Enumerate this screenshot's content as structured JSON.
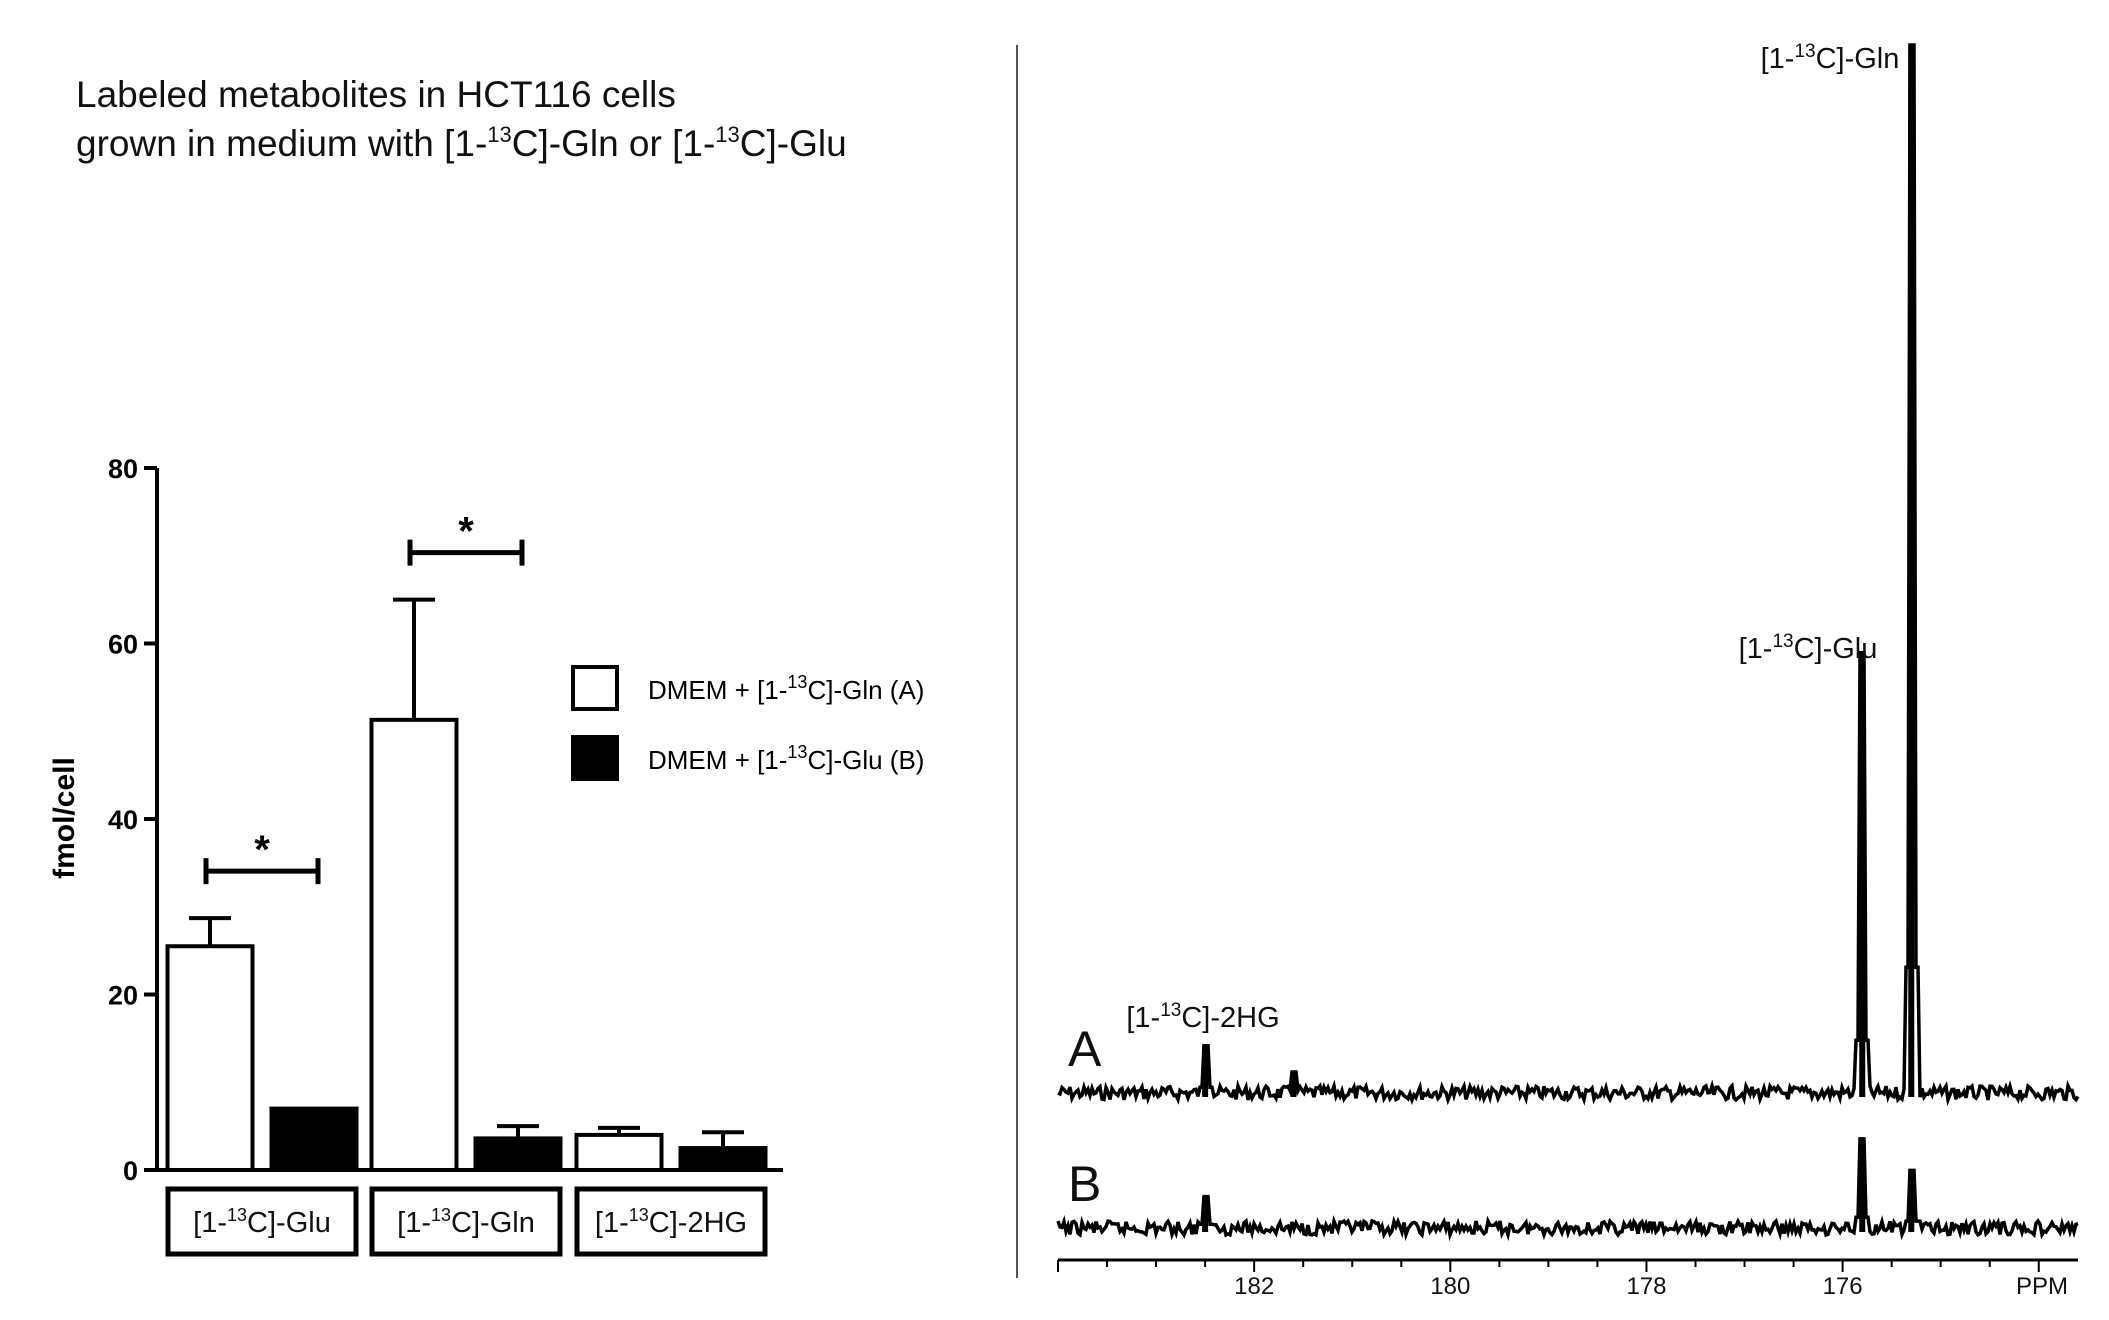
{
  "title": {
    "line1": "Labeled metabolites in HCT116 cells",
    "line2_prefix": "grown in medium with [1-",
    "line2_sup1": "13",
    "line2_mid": "C]-Gln or [1-",
    "line2_sup2": "13",
    "line2_suffix": "C]-Glu"
  },
  "chart_data": [
    {
      "type": "bar",
      "ylabel": "fmol/cell",
      "ylim": [
        0,
        80
      ],
      "yticks": [
        "0",
        "20",
        "40",
        "60",
        "80"
      ],
      "categories": [
        {
          "prefix": "[1-",
          "sup": "13",
          "suffix": "C]-Glu"
        },
        {
          "prefix": "[1-",
          "sup": "13",
          "suffix": "C]-Gln"
        },
        {
          "prefix": "[1-",
          "sup": "13",
          "suffix": "C]-2HG"
        }
      ],
      "series": [
        {
          "name": "DMEM + [1-13C]-Gln (A)",
          "legend": {
            "prefix": "DMEM + [1-",
            "sup": "13",
            "suffix": "C]-Gln (A)"
          },
          "fill": "#ffffff",
          "values": [
            25.5,
            51.3,
            4.0
          ],
          "errors": [
            3.2,
            13.7,
            0.8
          ]
        },
        {
          "name": "DMEM + [1-13C]-Glu (B)",
          "legend": {
            "prefix": "DMEM + [1-",
            "sup": "13",
            "suffix": "C]-Glu (B)"
          },
          "fill": "#000000",
          "values": [
            7.0,
            3.6,
            2.5
          ],
          "errors": [
            0.0,
            1.4,
            1.8
          ]
        }
      ],
      "significance": [
        {
          "category_index": 0,
          "label": "*"
        },
        {
          "category_index": 1,
          "label": "*"
        }
      ],
      "legend_placement": "right",
      "grid": false
    },
    {
      "type": "line",
      "xlabel": "PPM",
      "xlim": [
        184.0,
        173.6
      ],
      "xticks": [
        "182",
        "180",
        "178",
        "176"
      ],
      "x_axis_reversed": true,
      "series": [
        {
          "name": "A",
          "peaks": [
            {
              "ppm": 182.5,
              "intensity": 0.045
            },
            {
              "ppm": 181.6,
              "intensity": 0.02
            },
            {
              "ppm": 175.8,
              "intensity": 0.42
            },
            {
              "ppm": 175.3,
              "intensity": 1.0
            }
          ]
        },
        {
          "name": "B",
          "peaks": [
            {
              "ppm": 182.5,
              "intensity": 0.03
            },
            {
              "ppm": 175.8,
              "intensity": 0.085
            },
            {
              "ppm": 175.3,
              "intensity": 0.055
            }
          ]
        }
      ],
      "annotations": [
        {
          "prefix": "[1-",
          "sup": "13",
          "suffix": "C]-Gln",
          "ppm": 175.3
        },
        {
          "prefix": "[1-",
          "sup": "13",
          "suffix": "C]-Glu",
          "ppm": 175.8
        },
        {
          "prefix": "[1-",
          "sup": "13",
          "suffix": "C]-2HG",
          "ppm": 182.5
        }
      ],
      "grid": false
    }
  ]
}
